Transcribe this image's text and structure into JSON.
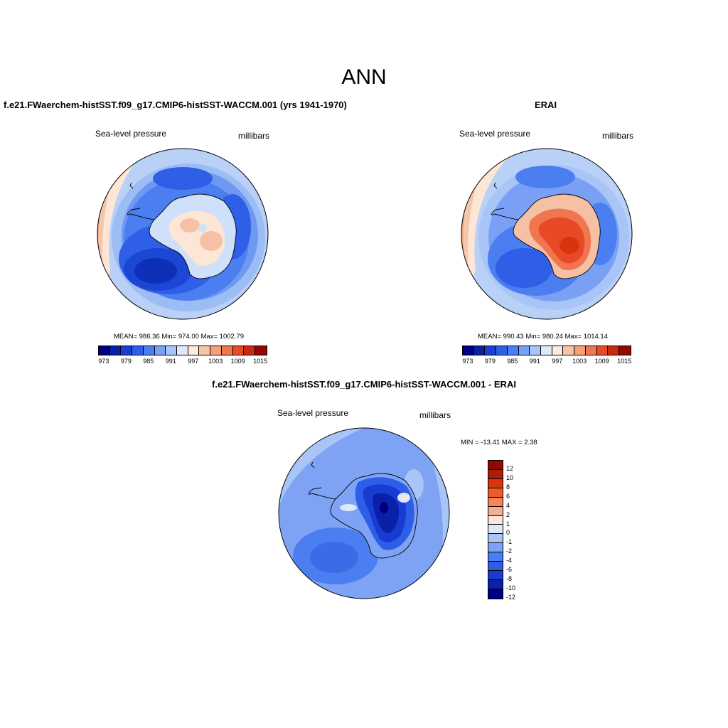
{
  "title": "ANN",
  "panels": {
    "model": {
      "title": "f.e21.FWaerchem-histSST.f09_g17.CMIP6-histSST-WACCM.001 (yrs 1941-1970)",
      "variable": "Sea-level pressure",
      "units": "millibars",
      "stats": "MEAN= 986.36  Min= 974.00  Max= 1002.79"
    },
    "obs": {
      "title": "ERAI",
      "variable": "Sea-level pressure",
      "units": "millibars",
      "stats": "MEAN= 990.43  Min= 980.24  Max= 1014.14"
    },
    "diff": {
      "title": "f.e21.FWaerchem-histSST.f09_g17.CMIP6-histSST-WACCM.001 - ERAI",
      "variable": "Sea-level pressure",
      "units": "millibars",
      "stats": "MIN = -13.41 MAX =   2.38"
    }
  },
  "colorbars": {
    "abs": {
      "colors": [
        "#00007f",
        "#0a1fa6",
        "#1a3fd0",
        "#2f5fe8",
        "#4a7ef2",
        "#7aa0f5",
        "#a9c4f6",
        "#dde8f8",
        "#fdebdc",
        "#f8c4a6",
        "#f4a07a",
        "#f07650",
        "#e84a28",
        "#c72a10",
        "#8f0a02"
      ],
      "tick_labels": [
        "973",
        "979",
        "985",
        "991",
        "997",
        "1003",
        "1009",
        "1015"
      ]
    },
    "diff": {
      "colors": [
        "#8f0a02",
        "#b21b05",
        "#d8350c",
        "#ee5a2a",
        "#f3865a",
        "#f6ae90",
        "#fde6d6",
        "#dde8f8",
        "#a9c4f6",
        "#7ea3f5",
        "#4a7ef2",
        "#2e5ee8",
        "#163cd2",
        "#0a20a8",
        "#00007f"
      ],
      "tick_labels": [
        "12",
        "10",
        "8",
        "6",
        "4",
        "2",
        "1",
        "0",
        "-1",
        "-2",
        "-4",
        "-6",
        "-8",
        "-10",
        "-12"
      ]
    }
  }
}
